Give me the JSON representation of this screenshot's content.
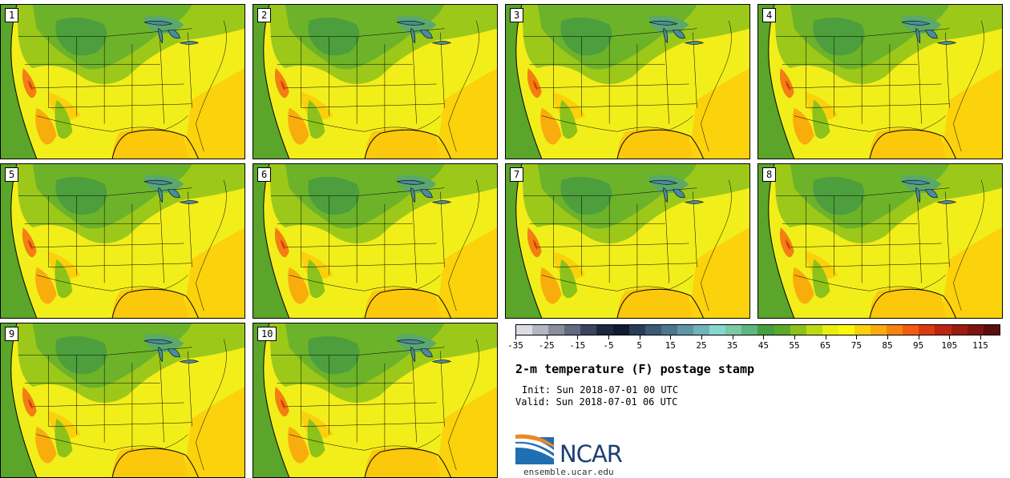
{
  "title": "2-m temperature (F) postage stamp",
  "init": "Init: Sun 2018-07-01 00 UTC",
  "valid": "Valid: Sun 2018-07-01 06 UTC",
  "logo_text": "NCAR",
  "url": "ensemble.ucar.edu",
  "members": [
    "1",
    "2",
    "3",
    "4",
    "5",
    "6",
    "7",
    "8",
    "9",
    "10"
  ],
  "colorbar": {
    "ticks": [
      "-35",
      "-25",
      "-15",
      "-5",
      "5",
      "15",
      "25",
      "35",
      "45",
      "55",
      "65",
      "75",
      "85",
      "95",
      "105",
      "115"
    ],
    "colors": [
      "#dcdde0",
      "#b4b7bf",
      "#8a8e9c",
      "#626a82",
      "#3a4460",
      "#1c2740",
      "#111a33",
      "#283c5a",
      "#3b5874",
      "#4b7590",
      "#5f96a7",
      "#6fb3bb",
      "#86d7cd",
      "#7cc9a8",
      "#5db67d",
      "#459f3f",
      "#5ca82a",
      "#8cc21a",
      "#bedb12",
      "#e8ee0f",
      "#fdf70a",
      "#fbd10b",
      "#f9ad0c",
      "#f7840c",
      "#f35c0e",
      "#dc3a10",
      "#bc2510",
      "#9c1a10",
      "#7c1410",
      "#5c0e0c"
    ],
    "min": -35,
    "max": 115
  }
}
